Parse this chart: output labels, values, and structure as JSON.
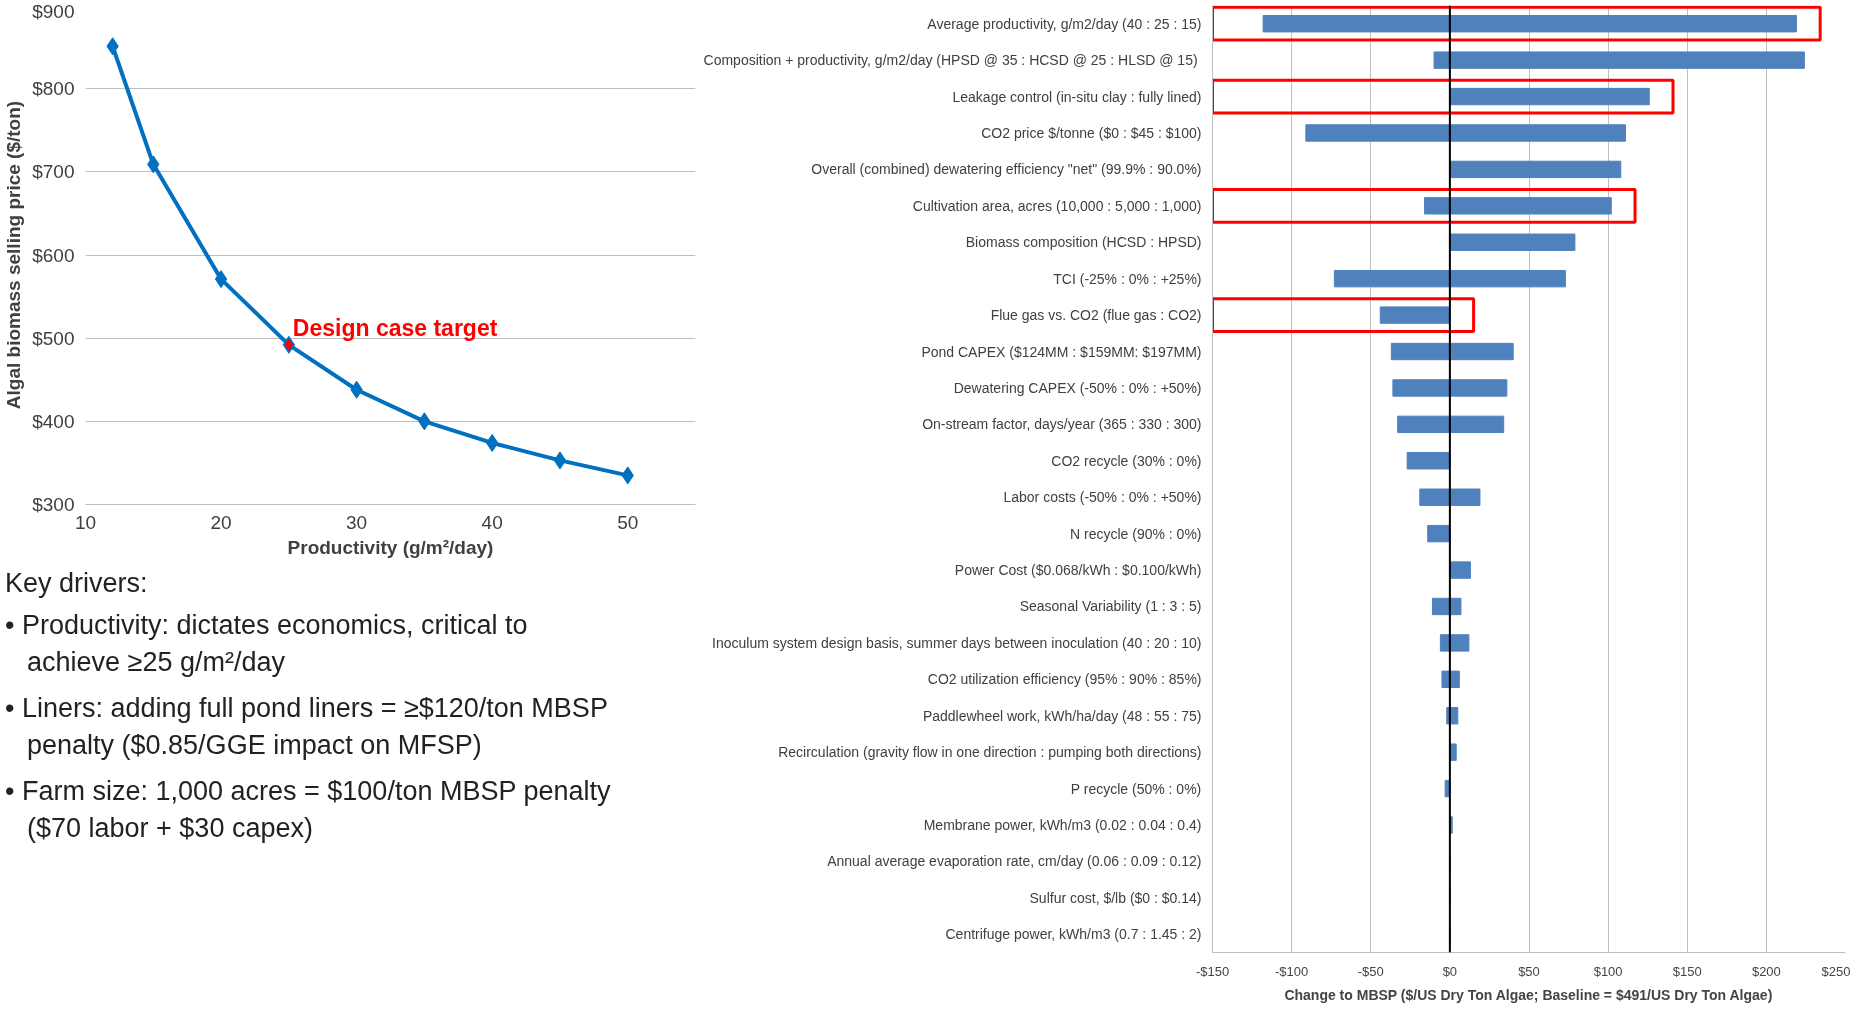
{
  "chart_data": [
    {
      "type": "line",
      "xlabel": "Productivity (g/m²/day)",
      "ylabel": "Algal biomass selling price ($/ton)",
      "marker": "diamond",
      "grid": "y",
      "xlim": [
        10,
        55
      ],
      "xticks": [
        10,
        20,
        30,
        40,
        50
      ],
      "ylim": [
        300,
        900
      ],
      "yticks": [
        {
          "value": 300,
          "label": "$300"
        },
        {
          "value": 400,
          "label": "$400"
        },
        {
          "value": 500,
          "label": "$500"
        },
        {
          "value": 600,
          "label": "$600"
        },
        {
          "value": 700,
          "label": "$700"
        },
        {
          "value": 800,
          "label": "$800"
        },
        {
          "value": 900,
          "label": "$900"
        }
      ],
      "series": [
        {
          "type": "line",
          "color": "#0070c0",
          "x": [
            12,
            15,
            20,
            25,
            30,
            35,
            40,
            45,
            50
          ],
          "values": [
            851,
            709,
            571,
            492,
            438,
            400,
            374,
            353,
            335
          ]
        },
        {
          "type": "scatter",
          "color": "#ff0000",
          "x": [
            25
          ],
          "values": [
            492
          ]
        }
      ],
      "annotations": [
        {
          "text": "Design case target",
          "x": 25,
          "y": 492
        }
      ]
    },
    {
      "type": "bar",
      "orientation": "horizontal",
      "xlabel": "Change to MBSP ($/US Dry Ton Algae; Baseline = $491/US Dry Ton Algae)",
      "grid": "x",
      "categories": [
        "Average productivity, g/m2/day (40 : 25 : 15)",
        "Composition + productivity, g/m2/day (HPSD @ 35 : HCSD @ 25  : HLSD @ 15)",
        "Leakage control (in-situ clay : fully lined)",
        "CO2 price $/tonne ($0 : $45 : $100)",
        "Overall (combined) dewatering efficiency \"net\" (99.9% : 90.0%)",
        "Cultivation area, acres (10,000 : 5,000 : 1,000)",
        "Biomass composition (HCSD : HPSD)",
        "TCI (-25% : 0% : +25%)",
        "Flue gas vs. CO2 (flue gas : CO2)",
        "Pond CAPEX ($124MM : $159MM: $197MM)",
        "Dewatering CAPEX (-50% : 0% : +50%)",
        "On-stream factor, days/year (365 : 330 : 300)",
        "CO2 recycle (30% : 0%)",
        "Labor costs (-50% : 0% : +50%)",
        "N recycle (90% : 0%)",
        "Power Cost ($0.068/kWh : $0.100/kWh)",
        "Seasonal Variability (1 : 3 : 5)",
        "Inoculum system design basis, summer days between inoculation (40 : 20 : 10)",
        "CO2 utilization efficiency (95% : 90% : 85%)",
        "Paddlewheel work, kWh/ha/day (48 : 55 : 75)",
        "Recirculation (gravity flow in one direction : pumping both directions)",
        "P recycle (50% : 0%)",
        "Membrane power, kWh/m3 (0.02 : 0.04 : 0.4)",
        "Annual average evaporation rate, cm/day (0.06 : 0.09 : 0.12)",
        "Sulfur cost, $/lb ($0 : $0.14)",
        "Centrifuge power, kWh/m3 (0.7 : 1.45 : 2)"
      ],
      "base": [
        -118,
        -10,
        0,
        -91,
        0,
        -16,
        0,
        -73,
        -44,
        -37,
        -36,
        -33,
        -27,
        -19,
        -14,
        0,
        -11,
        -6,
        -5,
        -2,
        0,
        -3,
        0,
        0,
        0,
        0
      ],
      "values": [
        337,
        234,
        126,
        202,
        108,
        118,
        79,
        146,
        44,
        77,
        72,
        67,
        27,
        38,
        14,
        13,
        18,
        18,
        11,
        7,
        4,
        3,
        1.5,
        0,
        0,
        0
      ],
      "color": "#4f81bd",
      "xlim": [
        -150,
        250
      ],
      "xticks": [
        {
          "value": -150,
          "label": "-$150"
        },
        {
          "value": -100,
          "label": "-$100"
        },
        {
          "value": -50,
          "label": "-$50"
        },
        {
          "value": 0,
          "label": "$0"
        },
        {
          "value": 50,
          "label": "$50"
        },
        {
          "value": 100,
          "label": "$100"
        },
        {
          "value": 150,
          "label": "$150"
        },
        {
          "value": 200,
          "label": "$200"
        },
        {
          "value": 250,
          "label": "$250"
        }
      ],
      "ref_lines": [
        {
          "axis": "x",
          "value": 0,
          "color": "#000000"
        }
      ]
    },
    {
      "type": "other",
      "title": "Key drivers:",
      "annotations": [
        "• Productivity: dictates economics, critical to achieve ≥25 g/m²/day",
        "• Liners: adding full pond liners = ≥$120/ton MBSP penalty ($0.85/GGE impact on MFSP)",
        "• Farm size: 1,000 acres = $100/ton MBSP penalty ($70 labor + $30 capex)"
      ]
    }
  ]
}
